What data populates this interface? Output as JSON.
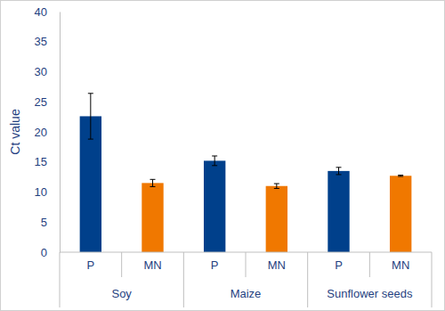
{
  "chart_data": {
    "type": "bar",
    "y_label": "Ct value",
    "categories": [
      "Soy",
      "Maize",
      "Sunflower seeds"
    ],
    "series": [
      {
        "name": "P",
        "color": "#00408b",
        "values": [
          22.6,
          15.2,
          13.5
        ],
        "errors": [
          3.8,
          0.8,
          0.6
        ]
      },
      {
        "name": "MN",
        "color": "#f07800",
        "values": [
          11.5,
          11.0,
          12.7
        ],
        "errors": [
          0.6,
          0.4,
          0.1
        ]
      }
    ],
    "ylim": [
      0,
      40
    ],
    "yticks": [
      0,
      5,
      10,
      15,
      20,
      25,
      30,
      35,
      40
    ],
    "grid": false
  }
}
